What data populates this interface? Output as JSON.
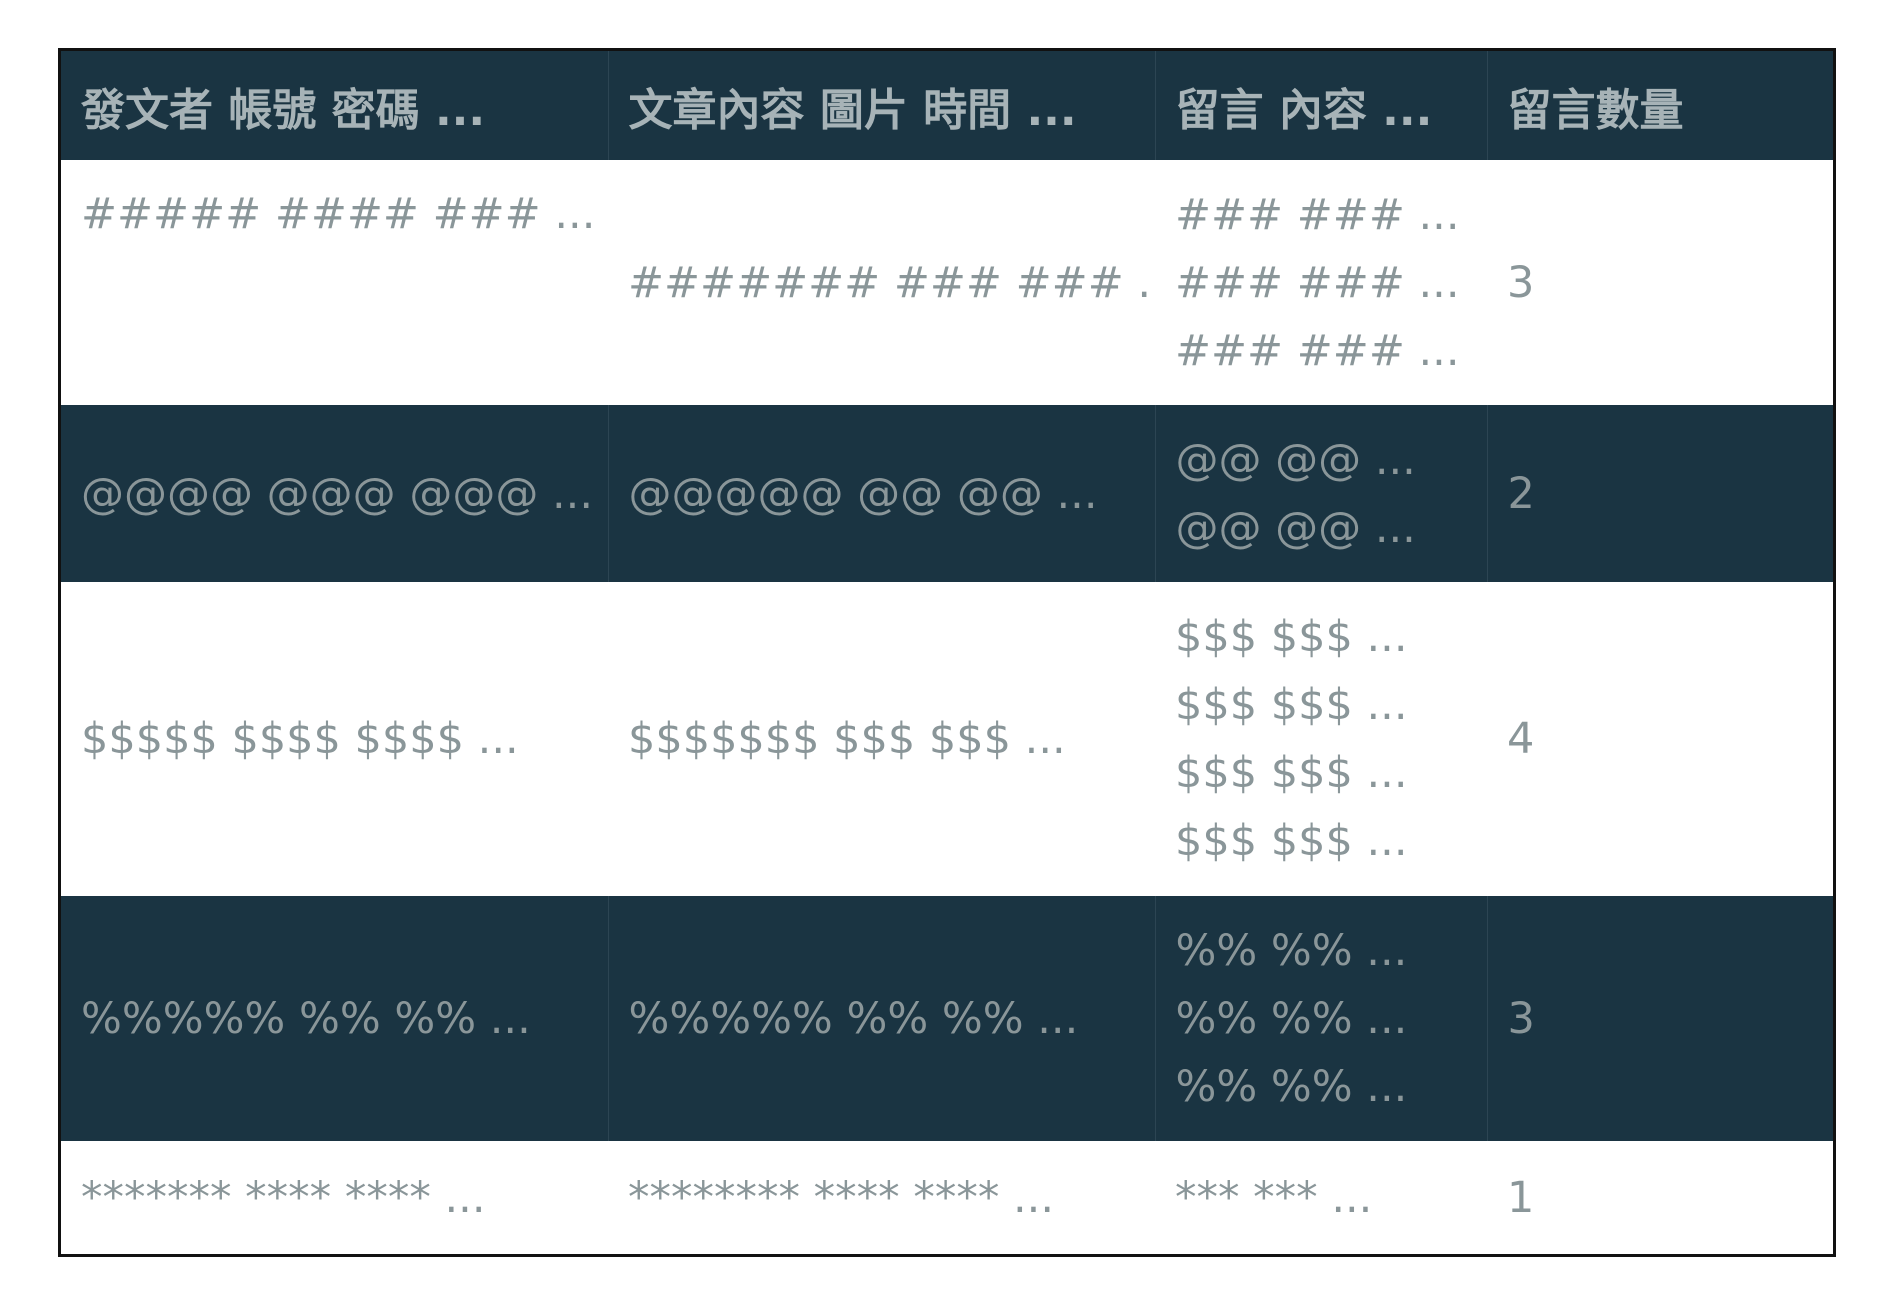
{
  "table": {
    "headers": [
      "發文者 帳號 密碼 ...",
      "文章內容 圖片 時間 ...",
      "留言 內容 ...",
      "留言數量"
    ],
    "rows": [
      {
        "author": "##### #### ### ...",
        "post": "####### ### ### ...",
        "comments": [
          "### ### ...",
          "### ### ...",
          "### ### ..."
        ],
        "count": "3"
      },
      {
        "author": "@@@@ @@@ @@@ ...",
        "post": "@@@@@ @@ @@ ...",
        "comments": [
          "@@ @@ ...",
          "@@ @@ ..."
        ],
        "count": "2"
      },
      {
        "author": "$$$$$ $$$$ $$$$ ...",
        "post": "$$$$$$$ $$$ $$$ ...",
        "comments": [
          "$$$ $$$ ...",
          "$$$ $$$ ...",
          "$$$ $$$ ...",
          "$$$ $$$ ..."
        ],
        "count": "4"
      },
      {
        "author": "%%%%% %% %% ...",
        "post": "%%%%% %% %% ...",
        "comments": [
          "%% %% ...",
          "%% %% ...",
          "%% %% ..."
        ],
        "count": "3"
      },
      {
        "author": "******* **** **** ...",
        "post": "******** **** **** ...",
        "comments": [
          "*** *** ..."
        ],
        "count": "1"
      }
    ]
  },
  "colors": {
    "header_bg": "#1a3442",
    "dark_row_bg": "#1a3442",
    "light_row_bg": "#ffffff",
    "text": "#8a9699",
    "header_text": "#a7b3b7",
    "border": "#111111"
  }
}
